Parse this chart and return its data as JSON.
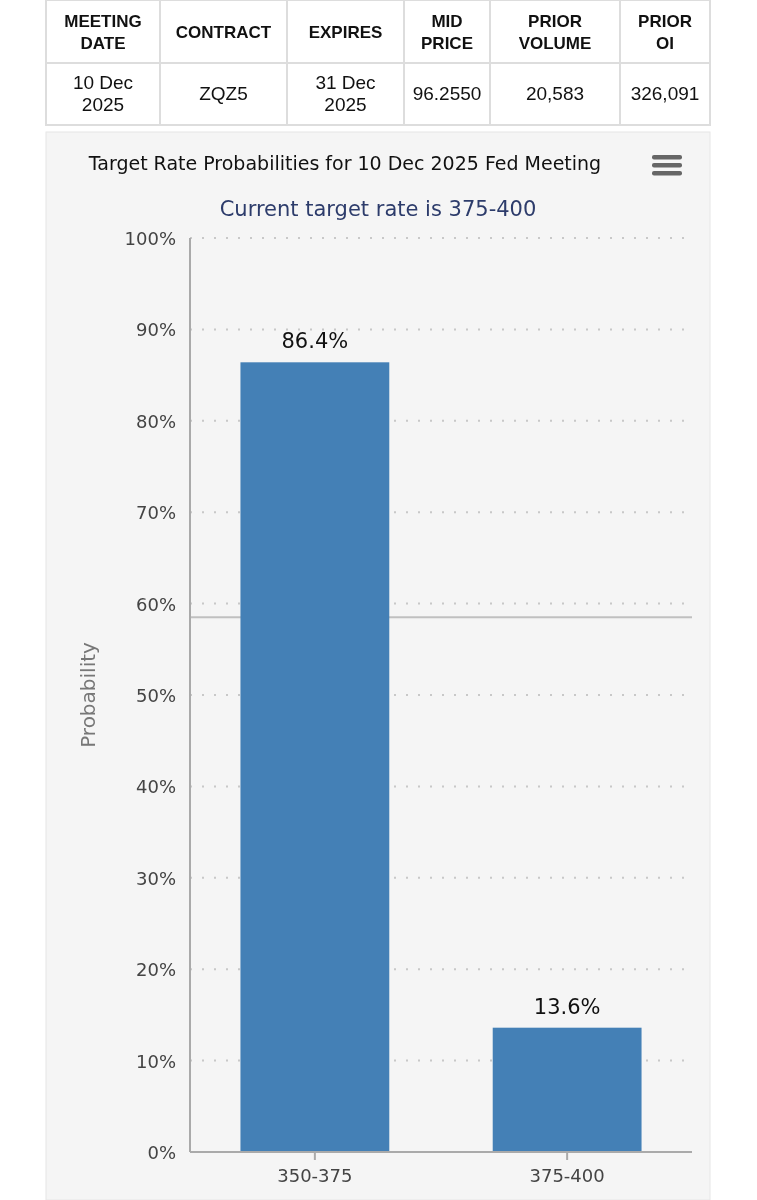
{
  "chart_data": [
    {
      "type": "other",
      "annotations": [
        "MEETING\nDATE",
        "CONTRACT",
        "EXPIRES",
        "MID\nPRICE",
        "PRIOR\nVOLUME",
        "PRIOR\nOI",
        "10 Dec\n2025",
        "ZQZ5",
        "31 Dec\n2025",
        "96.2550",
        "20,583",
        "326,091"
      ]
    },
    {
      "type": "bar",
      "title": "Target Rate Probabilities for 10 Dec 2025 Fed Meeting",
      "subtitle": "Current target rate is 375-400",
      "ylabel": "Probability",
      "categories": [
        "350-375",
        "375-400"
      ],
      "values": [
        86.4,
        13.6
      ],
      "color": "#4480b6",
      "ylim": [
        0,
        100
      ],
      "yticks": [
        {
          "value": 0,
          "label": "0%"
        },
        {
          "value": 10,
          "label": "10%"
        },
        {
          "value": 20,
          "label": "20%"
        },
        {
          "value": 30,
          "label": "30%"
        },
        {
          "value": 40,
          "label": "40%"
        },
        {
          "value": 50,
          "label": "50%"
        },
        {
          "value": 60,
          "label": "60%"
        },
        {
          "value": 70,
          "label": "70%"
        },
        {
          "value": 80,
          "label": "80%"
        },
        {
          "value": 90,
          "label": "90%"
        },
        {
          "value": 100,
          "label": "100%"
        }
      ],
      "grid": true,
      "value_labels": [
        "86.4%",
        "13.6%"
      ],
      "ref_lines": [
        {
          "axis": "y",
          "value": 58.5,
          "color": "#c0c0c0"
        }
      ]
    }
  ]
}
